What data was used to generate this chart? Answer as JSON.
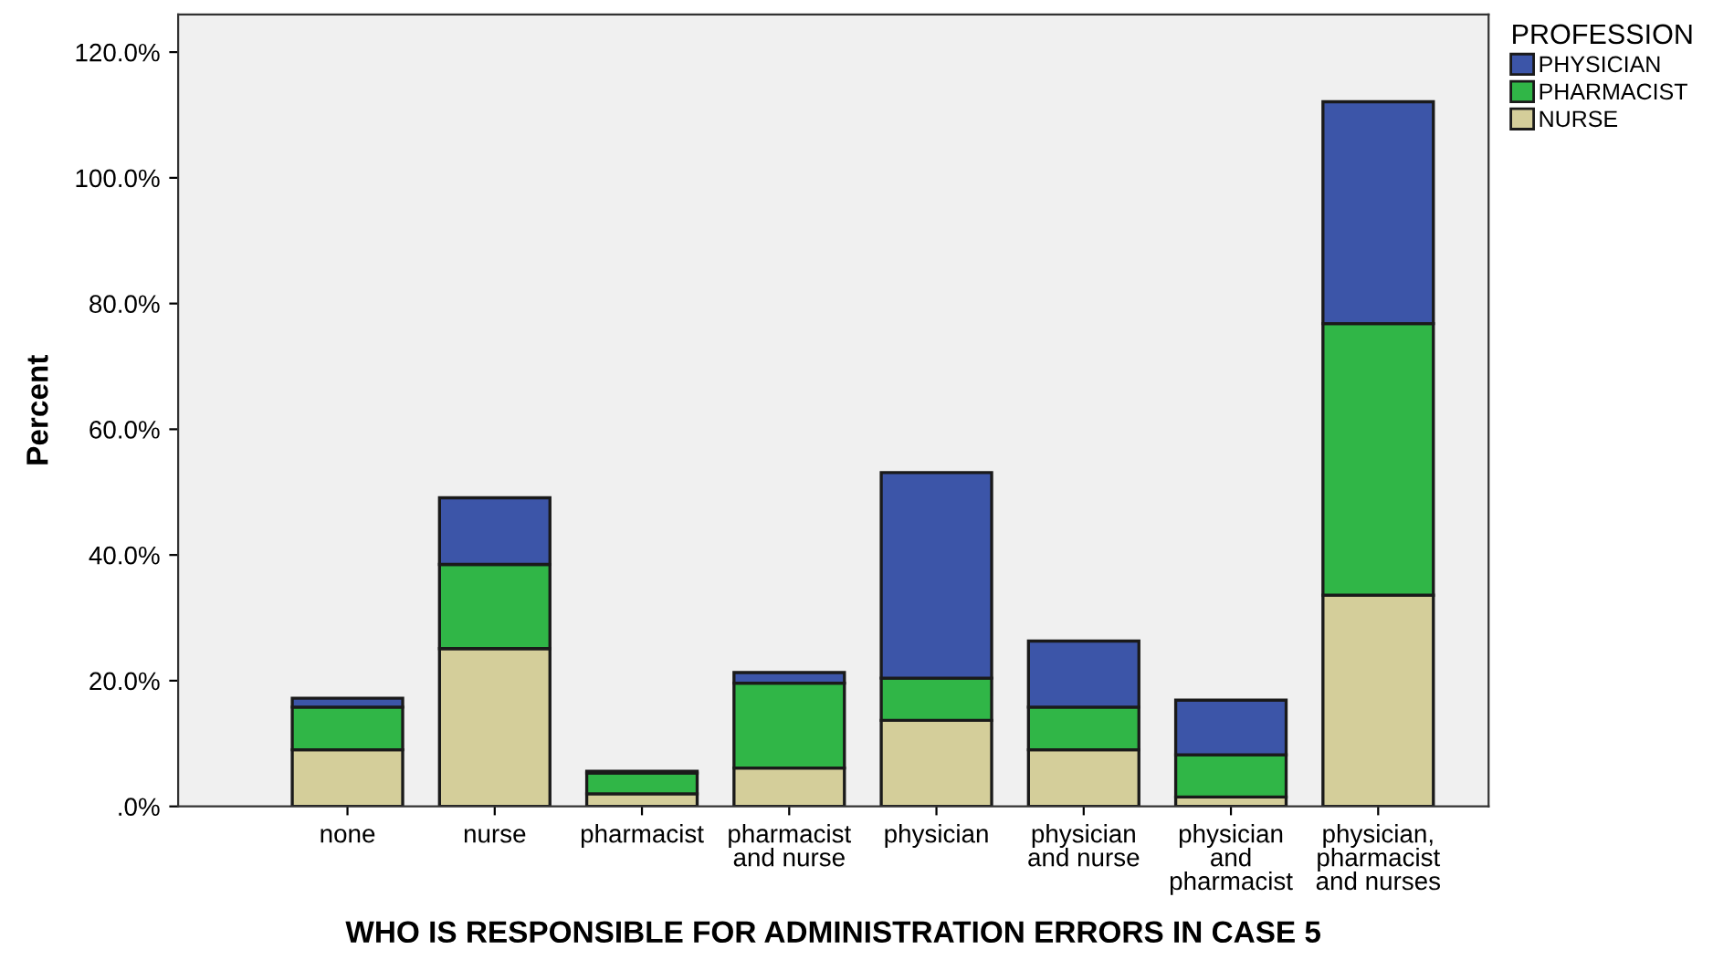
{
  "chart_data": {
    "type": "bar",
    "stacked": true,
    "xlabel": "WHO IS RESPONSIBLE FOR ADMINISTRATION ERRORS IN CASE 5",
    "ylabel": "Percent",
    "legend_title": "PROFESSION",
    "categories": [
      "none",
      "nurse",
      "pharmacist",
      "pharmacist\nand nurse",
      "physician",
      "physician\nand nurse",
      "physician\nand\npharmacist",
      "physician,\npharmacist\nand nurses"
    ],
    "series": [
      {
        "name": "NURSE",
        "color": "#d4ce9a",
        "values": [
          9.0,
          25.1,
          2.0,
          6.1,
          13.7,
          9.0,
          1.5,
          33.6
        ]
      },
      {
        "name": "PHARMACIST",
        "color": "#30b647",
        "values": [
          6.8,
          13.4,
          3.3,
          13.5,
          6.7,
          6.8,
          6.7,
          43.2
        ]
      },
      {
        "name": "PHYSICIAN",
        "color": "#3c55a8",
        "values": [
          1.4,
          10.6,
          0.3,
          1.7,
          32.7,
          10.5,
          8.7,
          35.3
        ]
      }
    ],
    "ylim": [
      0,
      126
    ],
    "yticks": [
      {
        "value": 0,
        "label": ".0%"
      },
      {
        "value": 20,
        "label": "20.0%"
      },
      {
        "value": 40,
        "label": "40.0%"
      },
      {
        "value": 60,
        "label": "60.0%"
      },
      {
        "value": 80,
        "label": "80.0%"
      },
      {
        "value": 100,
        "label": "100.0%"
      },
      {
        "value": 120,
        "label": "120.0%"
      }
    ],
    "grid": false,
    "legend": "right"
  }
}
